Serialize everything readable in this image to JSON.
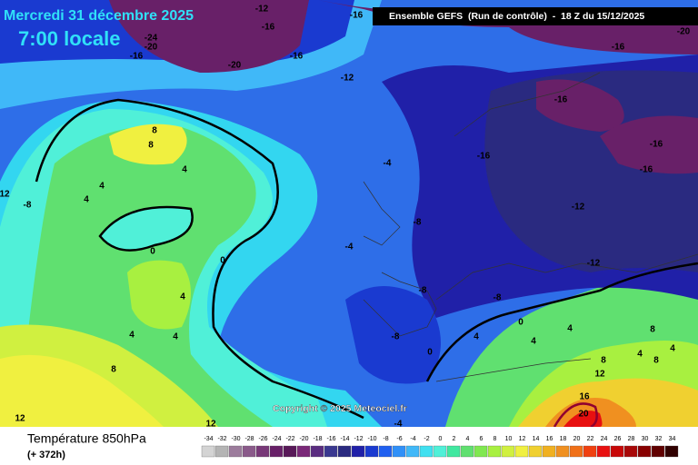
{
  "header": {
    "date": "Mercredi 31 décembre 2025",
    "time": "7:00 locale",
    "run": "Ensemble GEFS  (Run de contrôle)  -  18 Z du 15/12/2025",
    "copyright": "Copyright © 2025 Meteociel.fr"
  },
  "legend": {
    "title": "Température 850hPa",
    "lead": "(+ 372h)",
    "scale": [
      {
        "value": -34,
        "color": "#d4d4d4"
      },
      {
        "value": -32,
        "color": "#b4b4b4"
      },
      {
        "value": -30,
        "color": "#9c7c9c"
      },
      {
        "value": -28,
        "color": "#8a5a8a"
      },
      {
        "value": -26,
        "color": "#783878"
      },
      {
        "value": -24,
        "color": "#682068"
      },
      {
        "value": -22,
        "color": "#581858"
      },
      {
        "value": -20,
        "color": "#7a2878"
      },
      {
        "value": -18,
        "color": "#5a2c80"
      },
      {
        "value": -16,
        "color": "#3a3890"
      },
      {
        "value": -14,
        "color": "#2a2a80"
      },
      {
        "value": -12,
        "color": "#2020a8"
      },
      {
        "value": -10,
        "color": "#1a3ad0"
      },
      {
        "value": -8,
        "color": "#2060f0"
      },
      {
        "value": -6,
        "color": "#3090f8"
      },
      {
        "value": -4,
        "color": "#40b8f8"
      },
      {
        "value": -2,
        "color": "#40e0f0"
      },
      {
        "value": 0,
        "color": "#50f0d8"
      },
      {
        "value": 2,
        "color": "#40e8a0"
      },
      {
        "value": 4,
        "color": "#60e070"
      },
      {
        "value": 6,
        "color": "#80e850"
      },
      {
        "value": 8,
        "color": "#a8f040"
      },
      {
        "value": 10,
        "color": "#d0f040"
      },
      {
        "value": 12,
        "color": "#f0f040"
      },
      {
        "value": 14,
        "color": "#f0d030"
      },
      {
        "value": 16,
        "color": "#f0b020"
      },
      {
        "value": 18,
        "color": "#f09020"
      },
      {
        "value": 20,
        "color": "#f07018"
      },
      {
        "value": 22,
        "color": "#f04010"
      },
      {
        "value": 24,
        "color": "#e81010"
      },
      {
        "value": 26,
        "color": "#c80808"
      },
      {
        "value": 28,
        "color": "#a80808"
      },
      {
        "value": 30,
        "color": "#880000"
      },
      {
        "value": 32,
        "color": "#600000"
      },
      {
        "value": 34,
        "color": "#300000"
      }
    ]
  },
  "contour_labels": [
    -12,
    -16,
    -16,
    -24,
    -20,
    -16,
    -16,
    -20,
    -12,
    -16,
    -20,
    -16,
    -16,
    -16,
    -16,
    8,
    8,
    4,
    4,
    4,
    12,
    -8,
    -4,
    -8,
    -4,
    -12,
    0,
    0,
    -12,
    4,
    -8,
    -8,
    4,
    4,
    0,
    4,
    8,
    -8,
    0,
    4,
    4,
    4,
    4,
    8,
    8,
    8,
    12,
    16,
    20,
    12,
    12,
    -4
  ]
}
